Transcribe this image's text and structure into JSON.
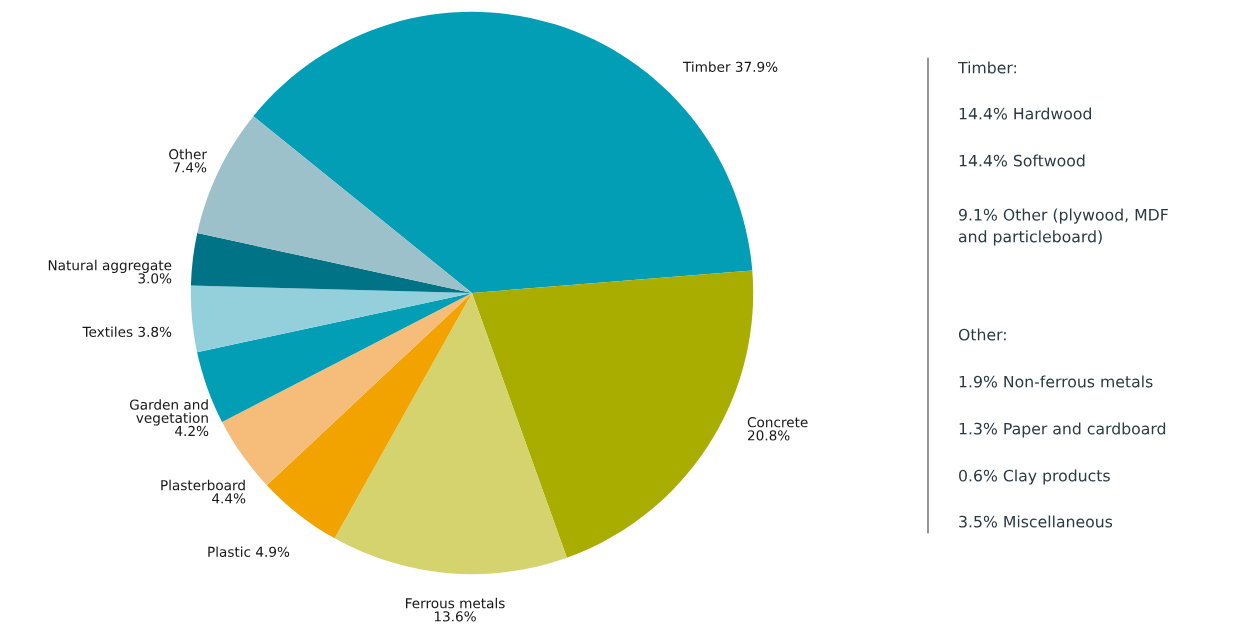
{
  "chart_data": {
    "type": "pie",
    "categories": [
      "Timber",
      "Concrete",
      "Ferrous metals",
      "Plastic",
      "Plasterboard",
      "Garden and vegetation",
      "Textiles",
      "Natural aggregate",
      "Other"
    ],
    "values": [
      37.9,
      20.8,
      13.6,
      4.9,
      4.4,
      4.2,
      3.8,
      3.0,
      7.4
    ],
    "colors": [
      "#029eb6",
      "#a9ad00",
      "#d5d36e",
      "#f3a300",
      "#f6bd7a",
      "#029eb6",
      "#94d0dc",
      "#007486",
      "#9dc1ca"
    ],
    "value_labels": [
      "37.9%",
      "20.8%",
      "13.6%",
      "4.9%",
      "4.4%",
      "4.2%",
      "3.8%",
      "3.0%",
      "7.4%"
    ],
    "annotations": [
      "Timber:",
      "14.4% Hardwood",
      "14.4% Softwood",
      "9.1% Other (plywood, MDF\nand particleboard)",
      "Other:",
      "1.9% Non-ferrous metals",
      "1.3% Paper and cardboard",
      "0.6% Clay products",
      "3.5% Miscellaneous"
    ]
  }
}
